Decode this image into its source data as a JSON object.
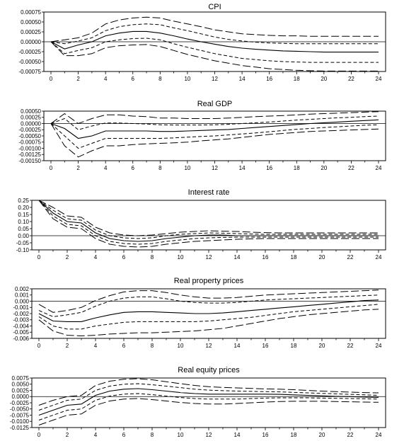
{
  "chart_data": [
    {
      "type": "line",
      "title": "CPI",
      "x": [
        0,
        1,
        2,
        3,
        4,
        5,
        6,
        7,
        8,
        9,
        10,
        11,
        12,
        13,
        14,
        15,
        16,
        17,
        18,
        19,
        20,
        21,
        22,
        23,
        24
      ],
      "ylim": [
        -0.00075,
        0.00075
      ],
      "y_ticks": [
        "0.00075",
        "0.00050",
        "0.00025",
        "0.00000",
        "-0.00025",
        "-0.00050",
        "-0.00075"
      ],
      "x_ticks": [
        "0",
        "2",
        "4",
        "6",
        "8",
        "10",
        "12",
        "14",
        "16",
        "18",
        "20",
        "22",
        "24"
      ],
      "zero_line": true,
      "series": [
        {
          "style": "outer-band",
          "values": [
            0.0,
            5e-05,
            0.0001,
            0.00022,
            0.00045,
            0.00055,
            0.0006,
            0.00062,
            0.0006,
            0.00052,
            0.00045,
            0.00038,
            0.0003,
            0.00025,
            0.0002,
            0.00018,
            0.00016,
            0.00015,
            0.00015,
            0.00014,
            0.00014,
            0.00014,
            0.00014,
            0.00014,
            0.00014
          ]
        },
        {
          "style": "inner-band",
          "values": [
            0.0,
            -5e-05,
            2e-05,
            0.0001,
            0.00028,
            0.00038,
            0.00043,
            0.00045,
            0.00043,
            0.00035,
            0.00028,
            0.0002,
            0.00012,
            6e-05,
            2e-05,
            -1e-05,
            -3e-05,
            -4e-05,
            -5e-05,
            -5e-05,
            -5e-05,
            -5e-05,
            -5e-05,
            -5e-05,
            -5e-05
          ]
        },
        {
          "style": "estimate",
          "values": [
            0.0,
            -0.00018,
            -8e-05,
            0.0,
            0.00015,
            0.00022,
            0.00026,
            0.00026,
            0.00022,
            0.00015,
            7e-05,
            0.0,
            -6e-05,
            -0.00012,
            -0.00016,
            -0.00019,
            -0.00021,
            -0.00023,
            -0.00024,
            -0.00025,
            -0.00026,
            -0.00026,
            -0.00026,
            -0.00026,
            -0.00026
          ]
        },
        {
          "style": "inner-band",
          "values": [
            0.0,
            -0.0003,
            -0.00022,
            -0.00015,
            0.0,
            5e-05,
            8e-05,
            9e-05,
            5e-05,
            -5e-05,
            -0.00014,
            -0.00022,
            -0.0003,
            -0.00036,
            -0.00042,
            -0.00045,
            -0.00048,
            -0.0005,
            -0.00051,
            -0.00052,
            -0.00052,
            -0.00052,
            -0.00052,
            -0.00052,
            -0.00052
          ]
        },
        {
          "style": "outer-band",
          "values": [
            0.0,
            -0.00035,
            -0.00035,
            -0.0003,
            -0.00015,
            -0.0001,
            -8e-05,
            -7e-05,
            -0.00012,
            -0.00022,
            -0.00032,
            -0.0004,
            -0.00048,
            -0.00054,
            -0.0006,
            -0.00064,
            -0.00068,
            -0.0007,
            -0.00072,
            -0.00073,
            -0.00074,
            -0.00074,
            -0.00074,
            -0.00074,
            -0.00074
          ]
        }
      ]
    },
    {
      "type": "line",
      "title": "Real GDP",
      "x": [
        0,
        1,
        2,
        3,
        4,
        5,
        6,
        7,
        8,
        9,
        10,
        11,
        12,
        13,
        14,
        15,
        16,
        17,
        18,
        19,
        20,
        21,
        22,
        23,
        24
      ],
      "ylim": [
        -0.0015,
        0.0005
      ],
      "y_ticks": [
        "0.00050",
        "0.00025",
        "0.00000",
        "-0.00025",
        "-0.00050",
        "-0.00075",
        "-0.00100",
        "-0.00125",
        "-0.00150"
      ],
      "x_ticks": [
        "0",
        "2",
        "4",
        "6",
        "8",
        "10",
        "12",
        "14",
        "16",
        "18",
        "20",
        "22",
        "24"
      ],
      "zero_line": true,
      "series": [
        {
          "style": "outer-band",
          "values": [
            0.0,
            0.0004,
            0.0,
            0.0002,
            0.00035,
            0.00035,
            0.0003,
            0.00028,
            0.00022,
            0.00022,
            0.0002,
            0.0002,
            0.0002,
            0.00022,
            0.00025,
            0.00028,
            0.0003,
            0.00032,
            0.00035,
            0.00038,
            0.0004,
            0.00042,
            0.00044,
            0.00046,
            0.00048
          ]
        },
        {
          "style": "inner-band",
          "values": [
            0.0,
            0.0002,
            -0.00025,
            -0.0001,
            2e-05,
            2e-05,
            0.0,
            -2e-05,
            -5e-05,
            -6e-05,
            -6e-05,
            -6e-05,
            -5e-05,
            -3e-05,
            0.0,
            3e-05,
            6e-05,
            0.0001,
            0.00014,
            0.00017,
            0.0002,
            0.00023,
            0.00025,
            0.00028,
            0.0003
          ]
        },
        {
          "style": "estimate",
          "values": [
            0.0,
            -0.0002,
            -0.0006,
            -0.0005,
            -0.0003,
            -0.0003,
            -0.0003,
            -0.0003,
            -0.00032,
            -0.00032,
            -0.0003,
            -0.00028,
            -0.00026,
            -0.00024,
            -0.0002,
            -0.00016,
            -0.00012,
            -8e-05,
            -4e-05,
            0.0,
            3e-05,
            6e-05,
            9e-05,
            0.00012,
            0.00015
          ]
        },
        {
          "style": "inner-band",
          "values": [
            0.0,
            -0.0005,
            -0.001,
            -0.0008,
            -0.0006,
            -0.0006,
            -0.0006,
            -0.0006,
            -0.0006,
            -0.00058,
            -0.00055,
            -0.00052,
            -0.0005,
            -0.00046,
            -0.00042,
            -0.00038,
            -0.00033,
            -0.00028,
            -0.00023,
            -0.0002,
            -0.00016,
            -0.00013,
            -0.0001,
            -7e-05,
            -5e-05
          ]
        },
        {
          "style": "outer-band",
          "values": [
            0.0,
            -0.0009,
            -0.00135,
            -0.0011,
            -0.0009,
            -0.0009,
            -0.00085,
            -0.00082,
            -0.0008,
            -0.00078,
            -0.00075,
            -0.0007,
            -0.00066,
            -0.00062,
            -0.00056,
            -0.0005,
            -0.00044,
            -0.0004,
            -0.00036,
            -0.00032,
            -0.0003,
            -0.00028,
            -0.00026,
            -0.00024,
            -0.00022
          ]
        }
      ]
    },
    {
      "type": "line",
      "title": "Interest rate",
      "x": [
        0,
        1,
        2,
        3,
        4,
        5,
        6,
        7,
        8,
        9,
        10,
        11,
        12,
        13,
        14,
        15,
        16,
        17,
        18,
        19,
        20,
        21,
        22,
        23,
        24
      ],
      "ylim": [
        -0.1,
        0.25
      ],
      "y_ticks": [
        "0.25",
        "0.20",
        "0.15",
        "0.10",
        "0.05",
        "0.00",
        "-0.05",
        "-0.10"
      ],
      "x_ticks": [
        "0",
        "2",
        "4",
        "6",
        "8",
        "10",
        "12",
        "14",
        "16",
        "18",
        "20",
        "22",
        "24"
      ],
      "zero_line": true,
      "series": [
        {
          "style": "outer-band",
          "values": [
            0.25,
            0.2,
            0.14,
            0.13,
            0.06,
            0.02,
            0.005,
            0.0,
            0.005,
            0.015,
            0.025,
            0.03,
            0.035,
            0.032,
            0.03,
            0.025,
            0.022,
            0.02,
            0.02,
            0.02,
            0.02,
            0.02,
            0.02,
            0.02,
            0.02
          ]
        },
        {
          "style": "inner-band",
          "values": [
            0.25,
            0.18,
            0.12,
            0.11,
            0.04,
            0.0,
            -0.015,
            -0.02,
            -0.015,
            0.0,
            0.01,
            0.015,
            0.02,
            0.018,
            0.015,
            0.012,
            0.01,
            0.01,
            0.01,
            0.01,
            0.01,
            0.01,
            0.01,
            0.01,
            0.01
          ]
        },
        {
          "style": "estimate",
          "values": [
            0.25,
            0.16,
            0.1,
            0.09,
            0.02,
            -0.02,
            -0.035,
            -0.04,
            -0.035,
            -0.02,
            -0.01,
            0.0,
            0.005,
            0.005,
            0.0,
            0.0,
            0.0,
            0.0,
            0.0,
            0.0,
            0.0,
            0.0,
            0.0,
            0.0,
            0.0
          ]
        },
        {
          "style": "inner-band",
          "values": [
            0.25,
            0.14,
            0.08,
            0.07,
            0.0,
            -0.04,
            -0.055,
            -0.06,
            -0.055,
            -0.04,
            -0.03,
            -0.02,
            -0.015,
            -0.012,
            -0.01,
            -0.01,
            -0.01,
            -0.01,
            -0.01,
            -0.01,
            -0.01,
            -0.01,
            -0.01,
            -0.01,
            -0.01
          ]
        },
        {
          "style": "outer-band",
          "values": [
            0.25,
            0.12,
            0.06,
            0.05,
            -0.02,
            -0.06,
            -0.075,
            -0.08,
            -0.075,
            -0.06,
            -0.05,
            -0.04,
            -0.035,
            -0.03,
            -0.025,
            -0.022,
            -0.02,
            -0.02,
            -0.02,
            -0.02,
            -0.02,
            -0.02,
            -0.02,
            -0.02,
            -0.02
          ]
        }
      ]
    },
    {
      "type": "line",
      "title": "Real property prices",
      "x": [
        0,
        1,
        2,
        3,
        4,
        5,
        6,
        7,
        8,
        9,
        10,
        11,
        12,
        13,
        14,
        15,
        16,
        17,
        18,
        19,
        20,
        21,
        22,
        23,
        24
      ],
      "ylim": [
        -0.006,
        0.002
      ],
      "y_ticks": [
        "0.002",
        "0.001",
        "0.000",
        "-0.001",
        "-0.002",
        "-0.003",
        "-0.004",
        "-0.005",
        "-0.006"
      ],
      "x_ticks": [
        "0",
        "2",
        "4",
        "6",
        "8",
        "10",
        "12",
        "14",
        "16",
        "18",
        "20",
        "22",
        "24"
      ],
      "zero_line": true,
      "series": [
        {
          "style": "outer-band",
          "values": [
            -0.0005,
            -0.0018,
            -0.0015,
            -0.001,
            0.0001,
            0.0009,
            0.0015,
            0.0017,
            0.0017,
            0.0014,
            0.001,
            0.0007,
            0.0005,
            0.0005,
            0.0006,
            0.0008,
            0.001,
            0.0011,
            0.0012,
            0.0013,
            0.0014,
            0.0015,
            0.0016,
            0.0017,
            0.0018
          ]
        },
        {
          "style": "inner-band",
          "values": [
            -0.0015,
            -0.0025,
            -0.0022,
            -0.0018,
            -0.0008,
            0.0,
            0.0005,
            0.0007,
            0.0007,
            0.0004,
            0.0,
            -0.0002,
            -0.0003,
            -0.0003,
            -0.0002,
            0.0,
            0.0002,
            0.0003,
            0.0004,
            0.0005,
            0.0006,
            0.0007,
            0.0008,
            0.0009,
            0.001
          ]
        },
        {
          "style": "estimate",
          "values": [
            -0.002,
            -0.0032,
            -0.0033,
            -0.0033,
            -0.0027,
            -0.0022,
            -0.0018,
            -0.0017,
            -0.0017,
            -0.0018,
            -0.0019,
            -0.002,
            -0.002,
            -0.0019,
            -0.0017,
            -0.0015,
            -0.0013,
            -0.0011,
            -0.0009,
            -0.0007,
            -0.0005,
            -0.0003,
            -0.0001,
            0.0001,
            0.0002
          ]
        },
        {
          "style": "inner-band",
          "values": [
            -0.0025,
            -0.004,
            -0.0045,
            -0.0045,
            -0.004,
            -0.0037,
            -0.0034,
            -0.0033,
            -0.0033,
            -0.0033,
            -0.0033,
            -0.0033,
            -0.0032,
            -0.003,
            -0.0028,
            -0.0026,
            -0.0023,
            -0.002,
            -0.0017,
            -0.0015,
            -0.0013,
            -0.0011,
            -0.0009,
            -0.0007,
            -0.0005
          ]
        },
        {
          "style": "outer-band",
          "values": [
            -0.003,
            -0.0048,
            -0.0055,
            -0.0056,
            -0.0055,
            -0.0053,
            -0.0052,
            -0.0051,
            -0.0051,
            -0.005,
            -0.0049,
            -0.0048,
            -0.0046,
            -0.0044,
            -0.004,
            -0.0036,
            -0.0032,
            -0.0028,
            -0.0025,
            -0.0022,
            -0.002,
            -0.0018,
            -0.0016,
            -0.0014,
            -0.0013
          ]
        }
      ]
    },
    {
      "type": "line",
      "title": "Real equity prices",
      "x": [
        0,
        1,
        2,
        3,
        4,
        5,
        6,
        7,
        8,
        9,
        10,
        11,
        12,
        13,
        14,
        15,
        16,
        17,
        18,
        19,
        20,
        21,
        22,
        23,
        24
      ],
      "ylim": [
        -0.0125,
        0.0075
      ],
      "y_ticks": [
        "0.0075",
        "0.0050",
        "0.0025",
        "0.0000",
        "-0.0025",
        "-0.0050",
        "-0.0075",
        "-0.0100",
        "-0.0125"
      ],
      "x_ticks": [
        "0",
        "2",
        "4",
        "6",
        "8",
        "10",
        "12",
        "14",
        "16",
        "18",
        "20",
        "22",
        "24"
      ],
      "zero_line": true,
      "series": [
        {
          "style": "outer-band",
          "values": [
            -0.0035,
            -0.0015,
            0.0,
            0.0005,
            0.0045,
            0.0062,
            0.007,
            0.0072,
            0.0068,
            0.006,
            0.0052,
            0.0045,
            0.004,
            0.0037,
            0.0035,
            0.0033,
            0.0031,
            0.003,
            0.0028,
            0.0025,
            0.0022,
            0.002,
            0.0018,
            0.0016,
            0.0015
          ]
        },
        {
          "style": "inner-band",
          "values": [
            -0.0055,
            -0.0035,
            -0.0015,
            -0.001,
            0.0025,
            0.0042,
            0.005,
            0.0052,
            0.0048,
            0.0042,
            0.0036,
            0.003,
            0.0026,
            0.0024,
            0.0022,
            0.0021,
            0.002,
            0.0019,
            0.0017,
            0.0015,
            0.0013,
            0.0011,
            0.0009,
            0.0007,
            0.0005
          ]
        },
        {
          "style": "estimate",
          "values": [
            -0.0075,
            -0.0055,
            -0.0035,
            -0.003,
            0.0005,
            0.0022,
            0.003,
            0.0032,
            0.0028,
            0.0022,
            0.0016,
            0.0012,
            0.001,
            0.001,
            0.001,
            0.001,
            0.001,
            0.0009,
            0.0007,
            0.0005,
            0.0003,
            0.0001,
            0.0,
            -0.0002,
            -0.0003
          ]
        },
        {
          "style": "inner-band",
          "values": [
            -0.0095,
            -0.0075,
            -0.0055,
            -0.005,
            -0.0015,
            0.0002,
            0.001,
            0.0012,
            0.0008,
            0.0002,
            -0.0004,
            -0.0008,
            -0.001,
            -0.001,
            -0.001,
            -0.0008,
            -0.0006,
            -0.0005,
            -0.0005,
            -0.0005,
            -0.0006,
            -0.0007,
            -0.0008,
            -0.0009,
            -0.001
          ]
        },
        {
          "style": "outer-band",
          "values": [
            -0.0115,
            -0.0095,
            -0.0075,
            -0.007,
            -0.0035,
            -0.0018,
            -0.001,
            -0.0008,
            -0.0012,
            -0.0018,
            -0.0024,
            -0.0028,
            -0.003,
            -0.003,
            -0.0028,
            -0.0025,
            -0.0022,
            -0.002,
            -0.0019,
            -0.0019,
            -0.0019,
            -0.002,
            -0.0021,
            -0.0022,
            -0.0023
          ]
        }
      ]
    }
  ]
}
